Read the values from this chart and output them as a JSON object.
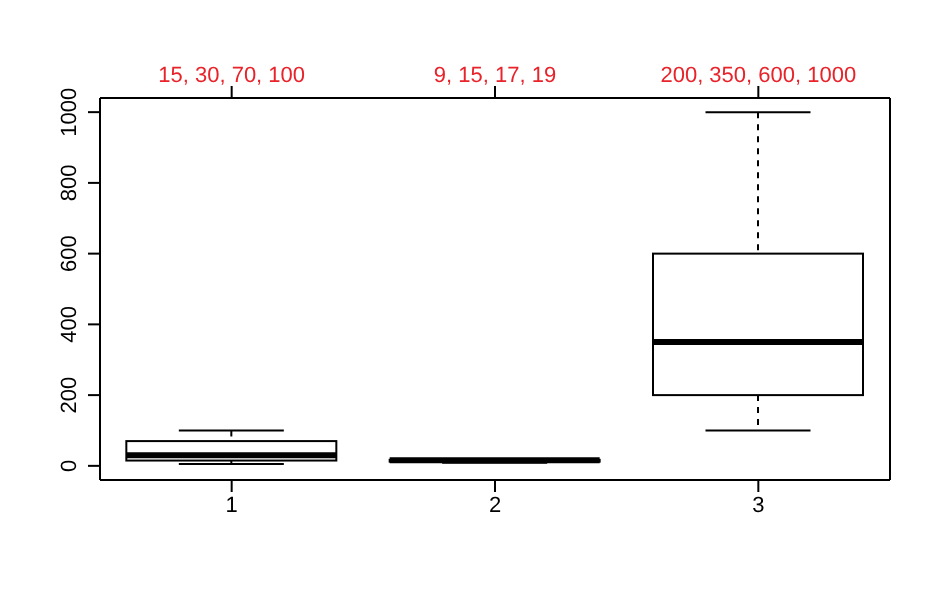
{
  "chart_data": {
    "type": "box",
    "categories": [
      "1",
      "2",
      "3"
    ],
    "boxes": [
      {
        "low": 5,
        "q1": 15,
        "median": 30,
        "q3": 70,
        "high": 100
      },
      {
        "low": 9,
        "q1": 12,
        "median": 16,
        "q3": 17,
        "high": 19
      },
      {
        "low": 100,
        "q1": 200,
        "median": 350,
        "q3": 600,
        "high": 1000
      }
    ],
    "ylim": [
      -40,
      1040
    ],
    "yticks": [
      0,
      200,
      400,
      600,
      800,
      1000
    ],
    "annotations": [
      "15, 30, 70, 100",
      "9, 15, 17, 19",
      "200, 350, 600, 1000"
    ]
  }
}
